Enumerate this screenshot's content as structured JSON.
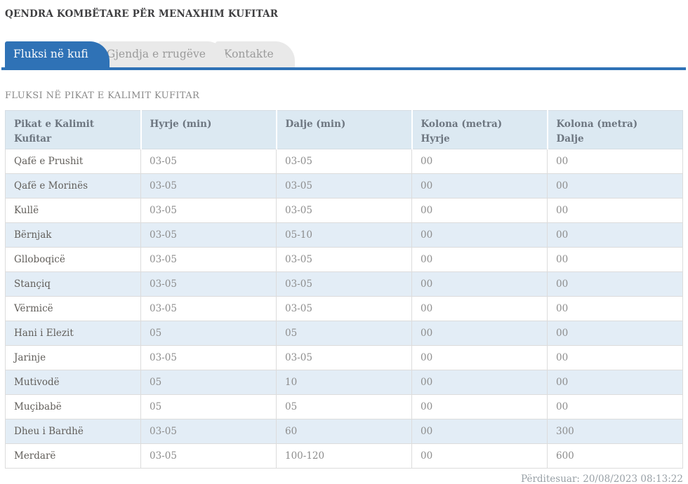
{
  "header": {
    "title": "QENDRA KOMBËTARE PËR MENAXHIM KUFITAR"
  },
  "tabs": [
    {
      "label": "Fluksi në kufi",
      "active": true
    },
    {
      "label": "Gjendja e rrugëve",
      "active": false
    },
    {
      "label": "Kontakte",
      "active": false
    }
  ],
  "section": {
    "heading": "FLUKSI NË PIKAT E KALIMIT KUFITAR"
  },
  "table": {
    "columns": [
      {
        "lines": [
          "Pikat e Kalimit Kufitar"
        ]
      },
      {
        "lines": [
          "Hyrje (min)"
        ]
      },
      {
        "lines": [
          "Dalje (min)"
        ]
      },
      {
        "lines": [
          "Kolona (metra)",
          "Hyrje"
        ]
      },
      {
        "lines": [
          "Kolona (metra)",
          "Dalje"
        ]
      }
    ],
    "rows": [
      {
        "cells": [
          "Qafë e Prushit",
          "03-05",
          "03-05",
          "00",
          "00"
        ]
      },
      {
        "cells": [
          "Qafë e Morinës",
          "03-05",
          "03-05",
          "00",
          "00"
        ]
      },
      {
        "cells": [
          "Kullë",
          "03-05",
          "03-05",
          "00",
          "00"
        ]
      },
      {
        "cells": [
          "Bërnjak",
          "03-05",
          "05-10",
          "00",
          "00"
        ]
      },
      {
        "cells": [
          "Glloboqicë",
          "03-05",
          "03-05",
          "00",
          "00"
        ]
      },
      {
        "cells": [
          "Stançiq",
          "03-05",
          "03-05",
          "00",
          "00"
        ]
      },
      {
        "cells": [
          "Vërmicë",
          "03-05",
          "03-05",
          "00",
          "00"
        ]
      },
      {
        "cells": [
          "Hani i Elezit",
          "05",
          "05",
          "00",
          "00"
        ]
      },
      {
        "cells": [
          "Jarinje",
          "03-05",
          "03-05",
          "00",
          "00"
        ]
      },
      {
        "cells": [
          "Mutivodë",
          "05",
          "10",
          "00",
          "00"
        ]
      },
      {
        "cells": [
          "Muçibabë",
          "05",
          "05",
          "00",
          "00"
        ]
      },
      {
        "cells": [
          "Dheu i Bardhë",
          "03-05",
          "60",
          "00",
          "300"
        ]
      },
      {
        "cells": [
          "Merdarë",
          "03-05",
          "100-120",
          "00",
          "600"
        ]
      }
    ]
  },
  "footer": {
    "updated": "Përditesuar: 20/08/2023 08:13:22"
  },
  "colors": {
    "accent_blue": "#2f72b6",
    "header_row_bg": "#dce9f2",
    "stripe_row_bg": "#e3edf6",
    "inactive_tab_bg": "#e9e9e9"
  }
}
